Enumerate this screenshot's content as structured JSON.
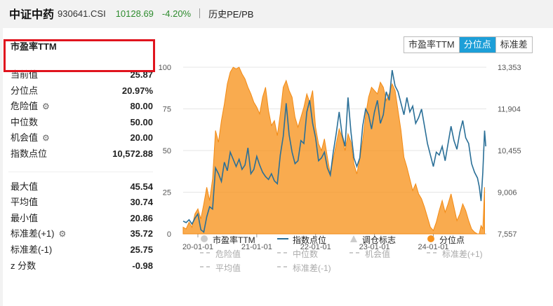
{
  "header": {
    "name": "中证中药",
    "code": "930641.CSI",
    "price": "10128.69",
    "change": "-4.20%",
    "view": "历史PE/PB"
  },
  "panel": {
    "title": "市盈率TTM",
    "tabs": [
      {
        "label": "市盈率TTM",
        "active": false
      },
      {
        "label": "分位点",
        "active": true
      },
      {
        "label": "标准差",
        "active": false
      }
    ]
  },
  "stats_top": [
    {
      "label": "当前值",
      "value": "25.87",
      "gear": false
    },
    {
      "label": "分位点",
      "value": "20.97%",
      "gear": false
    },
    {
      "label": "危险值",
      "value": "80.00",
      "gear": true
    },
    {
      "label": "中位数",
      "value": "50.00",
      "gear": false
    },
    {
      "label": "机会值",
      "value": "20.00",
      "gear": true
    },
    {
      "label": "指数点位",
      "value": "10,572.88",
      "gear": false
    }
  ],
  "stats_bottom": [
    {
      "label": "最大值",
      "value": "45.54",
      "gear": false
    },
    {
      "label": "平均值",
      "value": "30.74",
      "gear": false
    },
    {
      "label": "最小值",
      "value": "20.86",
      "gear": false
    },
    {
      "label": "标准差(+1)",
      "value": "35.72",
      "gear": true
    },
    {
      "label": "标准差(-1)",
      "value": "25.75",
      "gear": false
    },
    {
      "label": "z 分数",
      "value": "-0.98",
      "gear": false
    }
  ],
  "legend": [
    {
      "label": "市盈率TTM",
      "symbol": "circle",
      "color": "#cccccc",
      "dim": false
    },
    {
      "label": "指数点位",
      "symbol": "line",
      "color": "#2a6f97",
      "dim": false
    },
    {
      "label": "调仓标志",
      "symbol": "triangle",
      "color": "#cccccc",
      "dim": false
    },
    {
      "label": "分位点",
      "symbol": "circle",
      "color": "#f7931e",
      "dim": false
    },
    {
      "label": "危险值",
      "symbol": "dash",
      "color": "#cccccc",
      "dim": true
    },
    {
      "label": "中位数",
      "symbol": "dash",
      "color": "#cccccc",
      "dim": true
    },
    {
      "label": "机会值",
      "symbol": "dash",
      "color": "#cccccc",
      "dim": true
    },
    {
      "label": "标准差(+1)",
      "symbol": "dash",
      "color": "#cccccc",
      "dim": true
    },
    {
      "label": "平均值",
      "symbol": "dash",
      "color": "#cccccc",
      "dim": true
    },
    {
      "label": "标准差(-1)",
      "symbol": "dash",
      "color": "#cccccc",
      "dim": true
    }
  ],
  "colors": {
    "accent": "#1d9fd8",
    "fill": "#f7931e",
    "index_line": "#2a6f97",
    "highlight": "#e0141e",
    "down": "#2e8b2e"
  },
  "chart_data": {
    "type": "area",
    "x_tick_labels": [
      "20-01-01",
      "21-01-01",
      "22-01-01",
      "23-01-01",
      "24-01-01"
    ],
    "y_left": {
      "ticks": [
        0,
        25,
        50,
        75,
        100
      ],
      "range": [
        0,
        100
      ]
    },
    "y_right": {
      "ticks": [
        7557,
        9006,
        10455,
        11904,
        13353
      ],
      "tick_labels": [
        "7,557",
        "9,006",
        "10,455",
        "11,904",
        "13,353"
      ],
      "range": [
        7557,
        13353
      ]
    },
    "x_range": [
      2019.75,
      2024.9
    ],
    "series": [
      {
        "name": "分位点",
        "type": "area",
        "axis": "left",
        "points": [
          [
            2019.75,
            4
          ],
          [
            2019.8,
            3
          ],
          [
            2019.85,
            7
          ],
          [
            2019.9,
            4
          ],
          [
            2019.95,
            12
          ],
          [
            2020.0,
            15
          ],
          [
            2020.05,
            9
          ],
          [
            2020.1,
            18
          ],
          [
            2020.15,
            28
          ],
          [
            2020.2,
            20
          ],
          [
            2020.25,
            33
          ],
          [
            2020.3,
            62
          ],
          [
            2020.35,
            55
          ],
          [
            2020.4,
            68
          ],
          [
            2020.45,
            78
          ],
          [
            2020.5,
            90
          ],
          [
            2020.55,
            97
          ],
          [
            2020.6,
            100
          ],
          [
            2020.65,
            99
          ],
          [
            2020.7,
            100
          ],
          [
            2020.75,
            96
          ],
          [
            2020.8,
            93
          ],
          [
            2020.85,
            88
          ],
          [
            2020.9,
            84
          ],
          [
            2020.95,
            79
          ],
          [
            2021.0,
            76
          ],
          [
            2021.05,
            72
          ],
          [
            2021.1,
            82
          ],
          [
            2021.15,
            88
          ],
          [
            2021.2,
            74
          ],
          [
            2021.25,
            65
          ],
          [
            2021.3,
            68
          ],
          [
            2021.35,
            59
          ],
          [
            2021.4,
            72
          ],
          [
            2021.45,
            88
          ],
          [
            2021.5,
            92
          ],
          [
            2021.55,
            86
          ],
          [
            2021.6,
            82
          ],
          [
            2021.65,
            70
          ],
          [
            2021.7,
            64
          ],
          [
            2021.75,
            70
          ],
          [
            2021.8,
            76
          ],
          [
            2021.85,
            84
          ],
          [
            2021.9,
            79
          ],
          [
            2021.95,
            86
          ],
          [
            2022.0,
            64
          ],
          [
            2022.05,
            54
          ],
          [
            2022.1,
            50
          ],
          [
            2022.15,
            57
          ],
          [
            2022.2,
            46
          ],
          [
            2022.25,
            36
          ],
          [
            2022.3,
            45
          ],
          [
            2022.35,
            54
          ],
          [
            2022.4,
            63
          ],
          [
            2022.45,
            58
          ],
          [
            2022.5,
            50
          ],
          [
            2022.55,
            60
          ],
          [
            2022.6,
            55
          ],
          [
            2022.65,
            42
          ],
          [
            2022.7,
            36
          ],
          [
            2022.75,
            45
          ],
          [
            2022.8,
            56
          ],
          [
            2022.85,
            71
          ],
          [
            2022.9,
            82
          ],
          [
            2022.95,
            88
          ],
          [
            2023.0,
            86
          ],
          [
            2023.05,
            84
          ],
          [
            2023.1,
            91
          ],
          [
            2023.15,
            88
          ],
          [
            2023.2,
            80
          ],
          [
            2023.25,
            84
          ],
          [
            2023.3,
            90
          ],
          [
            2023.35,
            86
          ],
          [
            2023.4,
            74
          ],
          [
            2023.45,
            62
          ],
          [
            2023.5,
            46
          ],
          [
            2023.55,
            40
          ],
          [
            2023.6,
            33
          ],
          [
            2023.65,
            26
          ],
          [
            2023.7,
            30
          ],
          [
            2023.75,
            24
          ],
          [
            2023.8,
            21
          ],
          [
            2023.85,
            16
          ],
          [
            2023.9,
            10
          ],
          [
            2023.95,
            4
          ],
          [
            2024.0,
            2
          ],
          [
            2024.05,
            7
          ],
          [
            2024.1,
            14
          ],
          [
            2024.15,
            20
          ],
          [
            2024.2,
            13
          ],
          [
            2024.25,
            18
          ],
          [
            2024.3,
            24
          ],
          [
            2024.35,
            16
          ],
          [
            2024.4,
            8
          ],
          [
            2024.45,
            12
          ],
          [
            2024.5,
            18
          ],
          [
            2024.55,
            14
          ],
          [
            2024.6,
            8
          ],
          [
            2024.65,
            3
          ],
          [
            2024.7,
            1
          ],
          [
            2024.75,
            0
          ],
          [
            2024.78,
            0
          ],
          [
            2024.81,
            5
          ],
          [
            2024.84,
            3
          ],
          [
            2024.87,
            28
          ]
        ]
      },
      {
        "name": "指数点位",
        "type": "line",
        "axis": "right",
        "points": [
          [
            2019.75,
            8000
          ],
          [
            2019.8,
            7950
          ],
          [
            2019.85,
            8050
          ],
          [
            2019.9,
            7900
          ],
          [
            2019.95,
            8100
          ],
          [
            2020.0,
            8250
          ],
          [
            2020.05,
            7700
          ],
          [
            2020.1,
            7620
          ],
          [
            2020.15,
            8150
          ],
          [
            2020.2,
            8500
          ],
          [
            2020.25,
            8420
          ],
          [
            2020.3,
            9850
          ],
          [
            2020.35,
            9650
          ],
          [
            2020.4,
            9380
          ],
          [
            2020.45,
            10050
          ],
          [
            2020.5,
            9750
          ],
          [
            2020.55,
            10400
          ],
          [
            2020.6,
            10150
          ],
          [
            2020.65,
            9900
          ],
          [
            2020.7,
            10150
          ],
          [
            2020.75,
            9800
          ],
          [
            2020.8,
            9950
          ],
          [
            2020.85,
            10550
          ],
          [
            2020.9,
            9650
          ],
          [
            2020.95,
            9800
          ],
          [
            2021.0,
            10250
          ],
          [
            2021.05,
            9950
          ],
          [
            2021.1,
            9700
          ],
          [
            2021.15,
            9550
          ],
          [
            2021.2,
            9450
          ],
          [
            2021.25,
            9650
          ],
          [
            2021.3,
            9400
          ],
          [
            2021.35,
            9300
          ],
          [
            2021.4,
            10300
          ],
          [
            2021.45,
            10950
          ],
          [
            2021.5,
            12100
          ],
          [
            2021.55,
            11000
          ],
          [
            2021.6,
            10400
          ],
          [
            2021.65,
            10000
          ],
          [
            2021.7,
            10100
          ],
          [
            2021.75,
            10800
          ],
          [
            2021.8,
            10700
          ],
          [
            2021.85,
            11800
          ],
          [
            2021.9,
            12200
          ],
          [
            2021.95,
            11400
          ],
          [
            2022.0,
            10900
          ],
          [
            2022.05,
            10100
          ],
          [
            2022.1,
            10200
          ],
          [
            2022.15,
            10400
          ],
          [
            2022.2,
            9850
          ],
          [
            2022.25,
            9600
          ],
          [
            2022.3,
            10400
          ],
          [
            2022.35,
            11050
          ],
          [
            2022.4,
            11800
          ],
          [
            2022.45,
            11000
          ],
          [
            2022.5,
            10600
          ],
          [
            2022.55,
            12300
          ],
          [
            2022.6,
            11100
          ],
          [
            2022.65,
            10200
          ],
          [
            2022.7,
            9900
          ],
          [
            2022.75,
            10200
          ],
          [
            2022.8,
            11300
          ],
          [
            2022.85,
            11900
          ],
          [
            2022.9,
            11700
          ],
          [
            2022.95,
            11200
          ],
          [
            2023.0,
            11800
          ],
          [
            2023.05,
            12200
          ],
          [
            2023.1,
            11400
          ],
          [
            2023.15,
            11700
          ],
          [
            2023.2,
            12500
          ],
          [
            2023.25,
            12200
          ],
          [
            2023.3,
            13250
          ],
          [
            2023.35,
            12700
          ],
          [
            2023.4,
            12500
          ],
          [
            2023.45,
            12100
          ],
          [
            2023.5,
            11700
          ],
          [
            2023.55,
            12300
          ],
          [
            2023.6,
            11800
          ],
          [
            2023.65,
            12000
          ],
          [
            2023.7,
            11400
          ],
          [
            2023.75,
            11600
          ],
          [
            2023.8,
            11900
          ],
          [
            2023.85,
            11300
          ],
          [
            2023.9,
            10700
          ],
          [
            2023.95,
            10300
          ],
          [
            2024.0,
            9900
          ],
          [
            2024.05,
            10400
          ],
          [
            2024.1,
            10300
          ],
          [
            2024.15,
            10600
          ],
          [
            2024.2,
            10100
          ],
          [
            2024.25,
            10700
          ],
          [
            2024.3,
            11300
          ],
          [
            2024.35,
            10800
          ],
          [
            2024.4,
            10500
          ],
          [
            2024.45,
            11100
          ],
          [
            2024.5,
            11500
          ],
          [
            2024.55,
            10900
          ],
          [
            2024.6,
            10700
          ],
          [
            2024.65,
            10000
          ],
          [
            2024.7,
            9700
          ],
          [
            2024.75,
            9500
          ],
          [
            2024.78,
            9200
          ],
          [
            2024.81,
            8700
          ],
          [
            2024.84,
            9700
          ],
          [
            2024.87,
            11150
          ],
          [
            2024.89,
            10600
          ]
        ]
      }
    ]
  }
}
